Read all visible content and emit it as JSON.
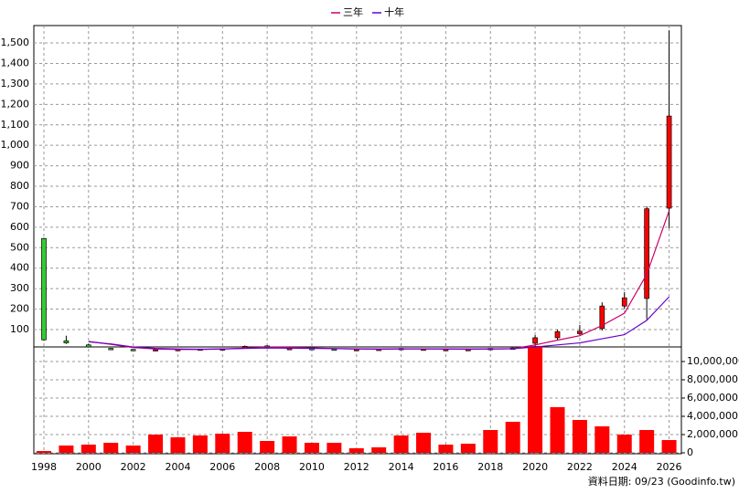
{
  "chart_data": {
    "type": "candlestick",
    "x": [
      1998,
      1999,
      2000,
      2001,
      2002,
      2003,
      2004,
      2005,
      2006,
      2007,
      2008,
      2009,
      2010,
      2011,
      2012,
      2013,
      2014,
      2015,
      2016,
      2017,
      2018,
      2019,
      2020,
      2021,
      2022,
      2023,
      2024,
      2025,
      2026
    ],
    "xlim": [
      1997.55,
      2026.55
    ],
    "xticks": [
      1998,
      2000,
      2002,
      2004,
      2006,
      2008,
      2010,
      2012,
      2014,
      2016,
      2018,
      2020,
      2022,
      2024,
      2026
    ],
    "candles": {
      "open": [
        545,
        45,
        25,
        8,
        3,
        2,
        2,
        3,
        5,
        15,
        20,
        5,
        8,
        5,
        3,
        3,
        8,
        5,
        3,
        3,
        3,
        8,
        33,
        60,
        80,
        105,
        215,
        252,
        693
      ],
      "high": [
        548,
        70,
        30,
        10,
        4,
        3,
        4,
        6,
        7,
        22,
        24,
        10,
        9,
        6,
        4,
        5,
        9,
        7,
        4,
        4,
        9,
        12,
        73,
        100,
        122,
        233,
        283,
        702,
        1562
      ],
      "low": [
        45,
        30,
        12,
        3,
        1,
        1,
        1,
        2,
        4,
        13,
        8,
        4,
        4,
        2,
        2,
        2,
        5,
        4,
        2,
        2,
        2,
        7,
        15,
        50,
        73,
        95,
        200,
        150,
        595
      ],
      "close": [
        50,
        35,
        15,
        5,
        2,
        2,
        3,
        5,
        6,
        18,
        10,
        8,
        5,
        3,
        3,
        4,
        7,
        5,
        3,
        3,
        8,
        10,
        60,
        90,
        92,
        215,
        255,
        690,
        1143
      ],
      "up_color": "#ff0000",
      "down_color": "#33cc33"
    },
    "series": [
      {
        "name": "三年",
        "color": "#cc0066",
        "values": [
          null,
          null,
          42,
          28,
          12,
          5,
          3,
          3,
          5,
          9,
          14,
          13,
          10,
          7,
          5,
          4,
          5,
          5,
          5,
          4,
          5,
          7,
          25,
          48,
          70,
          120,
          180,
          370,
          680
        ]
      },
      {
        "name": "十年",
        "color": "#6600cc",
        "values": [
          null,
          null,
          40,
          30,
          15,
          8,
          5,
          4,
          5,
          8,
          10,
          9,
          8,
          7,
          6,
          5,
          6,
          6,
          5,
          5,
          5,
          6,
          15,
          25,
          35,
          55,
          75,
          145,
          260
        ]
      }
    ],
    "ylim": [
      0,
      1585
    ],
    "yticks": [
      100,
      200,
      300,
      400,
      500,
      600,
      700,
      800,
      900,
      {
        "value": 1000,
        "label": "1,000"
      },
      {
        "value": 1100,
        "label": "1,100"
      },
      {
        "value": 1200,
        "label": "1,200"
      },
      {
        "value": 1300,
        "label": "1,300"
      },
      {
        "value": 1400,
        "label": "1,400"
      },
      {
        "value": 1500,
        "label": "1,500"
      }
    ],
    "volume": {
      "color": "#ff0000",
      "axis": "y2",
      "values": [
        200000,
        800000,
        900000,
        1100000,
        800000,
        2000000,
        1700000,
        1900000,
        2100000,
        2300000,
        1300000,
        1800000,
        1100000,
        1100000,
        500000,
        600000,
        1900000,
        2200000,
        900000,
        1000000,
        2500000,
        3400000,
        11700000,
        5000000,
        3600000,
        2900000,
        2000000,
        2500000,
        1400000
      ]
    },
    "y2lim": [
      0,
      11800000
    ],
    "y2ticks": [
      0,
      {
        "value": 2000000,
        "label": "2,000,000"
      },
      {
        "value": 4000000,
        "label": "4,000,000"
      },
      {
        "value": 6000000,
        "label": "6,000,000"
      },
      {
        "value": 8000000,
        "label": "8,000,000"
      },
      {
        "value": 10000000,
        "label": "10,000,000"
      }
    ],
    "grid": true,
    "footer": "資料日期: 09/23 (Goodinfo.tw)"
  }
}
